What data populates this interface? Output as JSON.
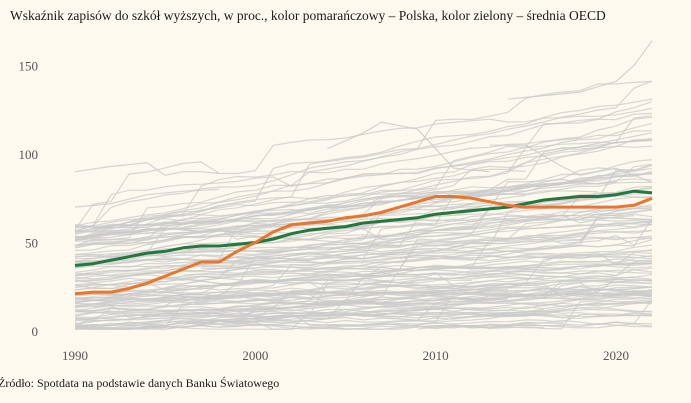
{
  "title": "Wskaźnik zapisów do szkół wyższych, w proc., kolor pomarańczowy – Polska, kolor zielony – średnia OECD",
  "source": "Źródło: Spotdata na podstawie danych Banku Światowego",
  "colors": {
    "background": "#fdf9ee",
    "poland": "#e8762e",
    "oecd": "#23773f",
    "other_countries": "#c9c9c9",
    "tick_text": "#555555"
  },
  "chart_data": {
    "type": "line",
    "title": "Wskaźnik zapisów do szkół wyższych, w proc., kolor pomarańczowy – Polska, kolor zielony – średnia OECD",
    "xlabel": "",
    "ylabel": "",
    "xlim": [
      1990,
      2022
    ],
    "ylim": [
      0,
      160
    ],
    "grid": false,
    "legend": "none (described in title)",
    "x_ticks": [
      1990,
      2000,
      2010,
      2020
    ],
    "y_ticks": [
      0,
      50,
      100,
      150
    ],
    "series": [
      {
        "name": "Polska",
        "color": "#e8762e",
        "x": [
          1990,
          1991,
          1992,
          1993,
          1994,
          1995,
          1996,
          1997,
          1998,
          1999,
          2000,
          2001,
          2002,
          2003,
          2004,
          2005,
          2006,
          2007,
          2008,
          2009,
          2010,
          2011,
          2012,
          2013,
          2014,
          2015,
          2016,
          2017,
          2018,
          2019,
          2020,
          2021,
          2022
        ],
        "values": [
          21,
          22,
          22,
          24,
          27,
          31,
          35,
          39,
          39,
          45,
          50,
          56,
          60,
          61,
          62,
          64,
          65,
          67,
          70,
          73,
          76,
          76,
          75,
          73,
          71,
          70,
          70,
          70,
          70,
          70,
          70,
          71,
          75
        ]
      },
      {
        "name": "Średnia OECD",
        "color": "#23773f",
        "x": [
          1990,
          1991,
          1992,
          1993,
          1994,
          1995,
          1996,
          1997,
          1998,
          1999,
          2000,
          2001,
          2002,
          2003,
          2004,
          2005,
          2006,
          2007,
          2008,
          2009,
          2010,
          2011,
          2012,
          2013,
          2014,
          2015,
          2016,
          2017,
          2018,
          2019,
          2020,
          2021,
          2022
        ],
        "values": [
          37,
          38,
          40,
          42,
          44,
          45,
          47,
          48,
          48,
          49,
          50,
          52,
          55,
          57,
          58,
          59,
          61,
          62,
          63,
          64,
          66,
          67,
          68,
          69,
          70,
          72,
          74,
          75,
          76,
          76,
          77,
          79,
          78
        ]
      }
    ],
    "background_series_note": "Many thin light-gray lines representing other countries, spread between 0 and ~165"
  }
}
